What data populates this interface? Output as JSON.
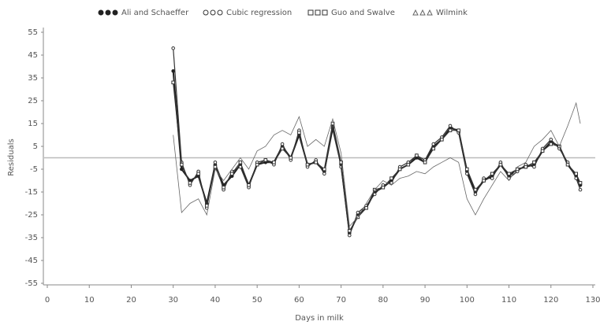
{
  "chart_data": {
    "type": "line",
    "xlabel": "Days in milk",
    "ylabel": "Residuals",
    "x": [
      30,
      32,
      34,
      36,
      38,
      40,
      42,
      44,
      46,
      48,
      50,
      52,
      54,
      56,
      58,
      60,
      62,
      64,
      66,
      68,
      70,
      72,
      74,
      76,
      78,
      80,
      82,
      84,
      86,
      88,
      90,
      92,
      94,
      96,
      98,
      100,
      102,
      104,
      106,
      108,
      110,
      112,
      114,
      116,
      118,
      120,
      122,
      124,
      126,
      127
    ],
    "series": [
      {
        "name": "Ali and Schaeffer",
        "color": "#222222",
        "marker": "circle-filled",
        "width": 2,
        "values": [
          38,
          -5,
          -10,
          -8,
          -20,
          -3,
          -12,
          -8,
          -3,
          -12,
          -3,
          -2,
          -2,
          5,
          0,
          10,
          -3,
          -2,
          -6,
          13,
          -3,
          -33,
          -25,
          -22,
          -15,
          -13,
          -10,
          -5,
          -3,
          0,
          -2,
          5,
          8,
          13,
          12,
          -6,
          -15,
          -10,
          -8,
          -3,
          -8,
          -5,
          -4,
          -3,
          3,
          7,
          5,
          -3,
          -8,
          -12
        ]
      },
      {
        "name": "Cubic regression",
        "color": "#333333",
        "marker": "circle-open",
        "width": 1.2,
        "values": [
          48,
          -2,
          -12,
          -6,
          -22,
          -2,
          -14,
          -6,
          -4,
          -13,
          -2,
          -1,
          -3,
          6,
          -1,
          12,
          -4,
          -1,
          -7,
          14,
          -4,
          -34,
          -24,
          -21,
          -16,
          -12,
          -11,
          -4,
          -2,
          1,
          -1,
          6,
          9,
          14,
          11,
          -7,
          -16,
          -9,
          -9,
          -2,
          -9,
          -6,
          -3,
          -4,
          4,
          8,
          4,
          -2,
          -9,
          -14
        ]
      },
      {
        "name": "Guo and Swalve",
        "color": "#333333",
        "marker": "square-open",
        "width": 1.2,
        "values": [
          33,
          -3,
          -11,
          -7,
          -21,
          -4,
          -13,
          -7,
          -2,
          -12,
          -3,
          -1,
          -2,
          4,
          0,
          11,
          -3,
          -2,
          -5,
          15,
          -2,
          -32,
          -26,
          -22,
          -14,
          -13,
          -9,
          -5,
          -3,
          1,
          -2,
          4,
          8,
          12,
          12,
          -5,
          -14,
          -10,
          -7,
          -3,
          -7,
          -5,
          -4,
          -2,
          3,
          6,
          5,
          -3,
          -7,
          -11
        ]
      },
      {
        "name": "Wilmink",
        "color": "#666666",
        "marker": "triangle-open",
        "width": 0.8,
        "values": [
          10,
          -24,
          -20,
          -18,
          -25,
          -5,
          -10,
          -5,
          0,
          -5,
          3,
          5,
          10,
          12,
          10,
          18,
          5,
          8,
          5,
          17,
          2,
          -30,
          -26,
          -20,
          -14,
          -10,
          -12,
          -9,
          -8,
          -6,
          -7,
          -4,
          -2,
          0,
          -2,
          -18,
          -25,
          -18,
          -12,
          -6,
          -10,
          -4,
          -2,
          5,
          8,
          12,
          5,
          14,
          24,
          15
        ]
      }
    ],
    "xlim": [
      0,
      130
    ],
    "xticks": [
      0,
      10,
      20,
      30,
      40,
      50,
      60,
      70,
      80,
      90,
      100,
      110,
      120,
      130
    ],
    "ylim": [
      -55,
      55
    ],
    "yticks": [
      55,
      45,
      35,
      25,
      15,
      5,
      -5,
      -15,
      -25,
      -35,
      -45,
      -55
    ],
    "reference_line": 0,
    "grid": false
  }
}
